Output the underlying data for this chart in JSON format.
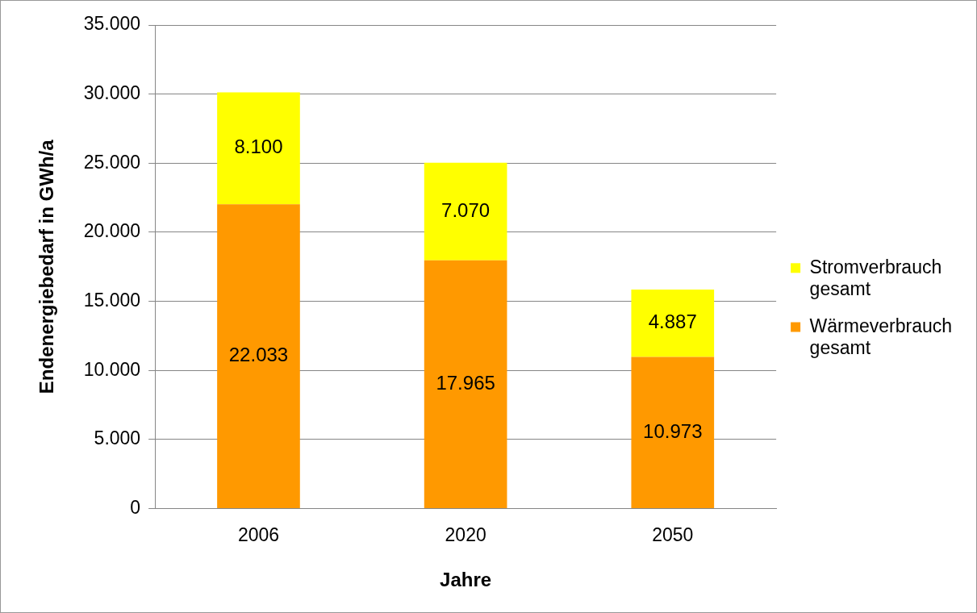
{
  "chart_data": {
    "type": "bar",
    "stacked": true,
    "xlabel": "Jahre",
    "ylabel": "Endenergiebedarf in GWh/a",
    "categories": [
      "2006",
      "2020",
      "2050"
    ],
    "series": [
      {
        "name": "Wärmeverbrauch gesamt",
        "color": "#ff9900",
        "values": [
          22033,
          17965,
          10973
        ],
        "value_labels": [
          "22.033",
          "17.965",
          "10.973"
        ]
      },
      {
        "name": "Stromverbrauch gesamt",
        "color": "#ffff00",
        "values": [
          8100,
          7070,
          4887
        ],
        "value_labels": [
          "8.100",
          "7.070",
          "4.887"
        ]
      }
    ],
    "ylim": [
      0,
      35000
    ],
    "yticks": [
      {
        "value": 0,
        "label": "0"
      },
      {
        "value": 5000,
        "label": "5.000"
      },
      {
        "value": 10000,
        "label": "10.000"
      },
      {
        "value": 15000,
        "label": "15.000"
      },
      {
        "value": 20000,
        "label": "20.000"
      },
      {
        "value": 25000,
        "label": "25.000"
      },
      {
        "value": 30000,
        "label": "30.000"
      },
      {
        "value": 35000,
        "label": "35.000"
      }
    ],
    "grid": "y",
    "legend": "right"
  }
}
